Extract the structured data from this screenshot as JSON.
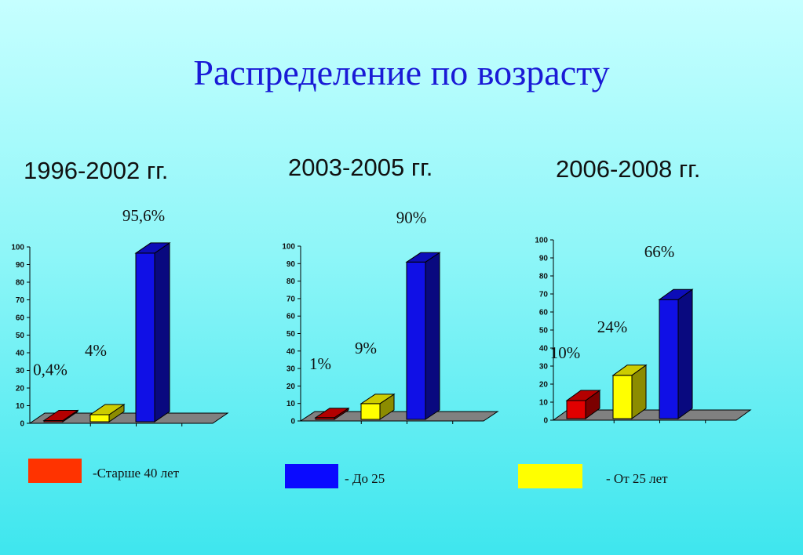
{
  "title": "Распределение  по возрасту",
  "chart_data": [
    {
      "type": "bar",
      "title": "1996-2002 гг.",
      "categories": [
        "Старше 40 лет",
        "От 25 лет",
        "До 25"
      ],
      "values": [
        0.4,
        4,
        95.6
      ],
      "value_labels": [
        "0,4%",
        "4%",
        "95,6%"
      ],
      "colors": [
        "#e00000",
        "#ffff00",
        "#1010e6"
      ],
      "ylim": [
        0,
        100
      ],
      "yticks": [
        "0",
        "10",
        "20",
        "30",
        "40",
        "50",
        "60",
        "70",
        "80",
        "90",
        "100"
      ],
      "grid": false
    },
    {
      "type": "bar",
      "title": "2003-2005 гг.",
      "categories": [
        "Старше 40 лет",
        "От 25 лет",
        "До 25"
      ],
      "values": [
        1,
        9,
        90
      ],
      "value_labels": [
        "1%",
        "9%",
        "90%"
      ],
      "colors": [
        "#e00000",
        "#ffff00",
        "#1010e6"
      ],
      "ylim": [
        0,
        100
      ],
      "yticks": [
        "0",
        "10",
        "20",
        "30",
        "40",
        "50",
        "60",
        "70",
        "80",
        "90",
        "100"
      ],
      "grid": false
    },
    {
      "type": "bar",
      "title": "2006-2008 гг.",
      "categories": [
        "Старше 40 лет",
        "От 25 лет",
        "До 25"
      ],
      "values": [
        10,
        24,
        66
      ],
      "value_labels": [
        "10%",
        "24%",
        "66%"
      ],
      "colors": [
        "#e00000",
        "#ffff00",
        "#1010e6"
      ],
      "ylim": [
        0,
        100
      ],
      "yticks": [
        "0",
        "10",
        "20",
        "30",
        "40",
        "50",
        "60",
        "70",
        "80",
        "90",
        "100"
      ],
      "grid": false
    }
  ],
  "legend": [
    {
      "label": "-Старше 40 лет",
      "color": "#ff3300"
    },
    {
      "label": "- До 25",
      "color": "#0a0aff"
    },
    {
      "label": "- От 25 лет",
      "color": "#ffff00"
    }
  ]
}
